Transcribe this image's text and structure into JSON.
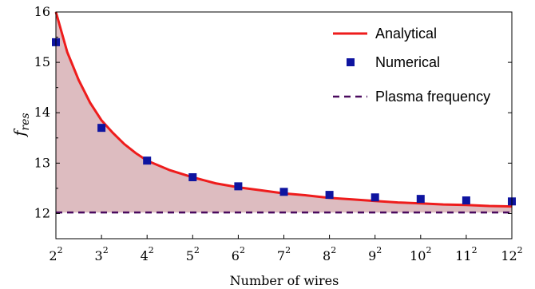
{
  "chart_data": {
    "type": "line",
    "xlabel": "Number of wires",
    "ylabel": {
      "base": "f",
      "sub": "res"
    },
    "x_tick_labels": [
      {
        "base": "2",
        "exp": "2"
      },
      {
        "base": "3",
        "exp": "2"
      },
      {
        "base": "4",
        "exp": "2"
      },
      {
        "base": "5",
        "exp": "2"
      },
      {
        "base": "6",
        "exp": "2"
      },
      {
        "base": "7",
        "exp": "2"
      },
      {
        "base": "8",
        "exp": "2"
      },
      {
        "base": "9",
        "exp": "2"
      },
      {
        "base": "10",
        "exp": "2"
      },
      {
        "base": "11",
        "exp": "2"
      },
      {
        "base": "12",
        "exp": "2"
      }
    ],
    "x": [
      2,
      3,
      4,
      5,
      6,
      7,
      8,
      9,
      10,
      11,
      12
    ],
    "xlim": [
      2,
      12
    ],
    "ylim": [
      11.5,
      16
    ],
    "y_ticks": [
      12,
      13,
      14,
      15,
      16
    ],
    "series": [
      {
        "name": "Analytical",
        "kind": "line",
        "color": "#ee1c1c",
        "x": [
          2,
          2.25,
          2.5,
          2.75,
          3,
          3.25,
          3.5,
          3.75,
          4,
          4.5,
          5,
          5.5,
          6,
          6.5,
          7,
          7.5,
          8,
          8.5,
          9,
          9.5,
          10,
          10.5,
          11,
          11.5,
          12
        ],
        "values": [
          16.0,
          15.2,
          14.65,
          14.2,
          13.85,
          13.6,
          13.38,
          13.2,
          13.05,
          12.86,
          12.72,
          12.6,
          12.52,
          12.46,
          12.4,
          12.36,
          12.31,
          12.28,
          12.25,
          12.22,
          12.2,
          12.18,
          12.17,
          12.15,
          12.14
        ]
      },
      {
        "name": "Numerical",
        "kind": "scatter",
        "color": "#0e14a0",
        "x": [
          2,
          3,
          4,
          5,
          6,
          7,
          8,
          9,
          10,
          11,
          12
        ],
        "values": [
          15.4,
          13.7,
          13.05,
          12.72,
          12.54,
          12.43,
          12.37,
          12.32,
          12.29,
          12.26,
          12.24
        ]
      },
      {
        "name": "Plasma frequency",
        "kind": "dashed",
        "color": "#4a0a5e",
        "value": 12.02
      }
    ],
    "fill_color": "#ddbcc0",
    "legend_position": "top-right",
    "grid": false
  }
}
